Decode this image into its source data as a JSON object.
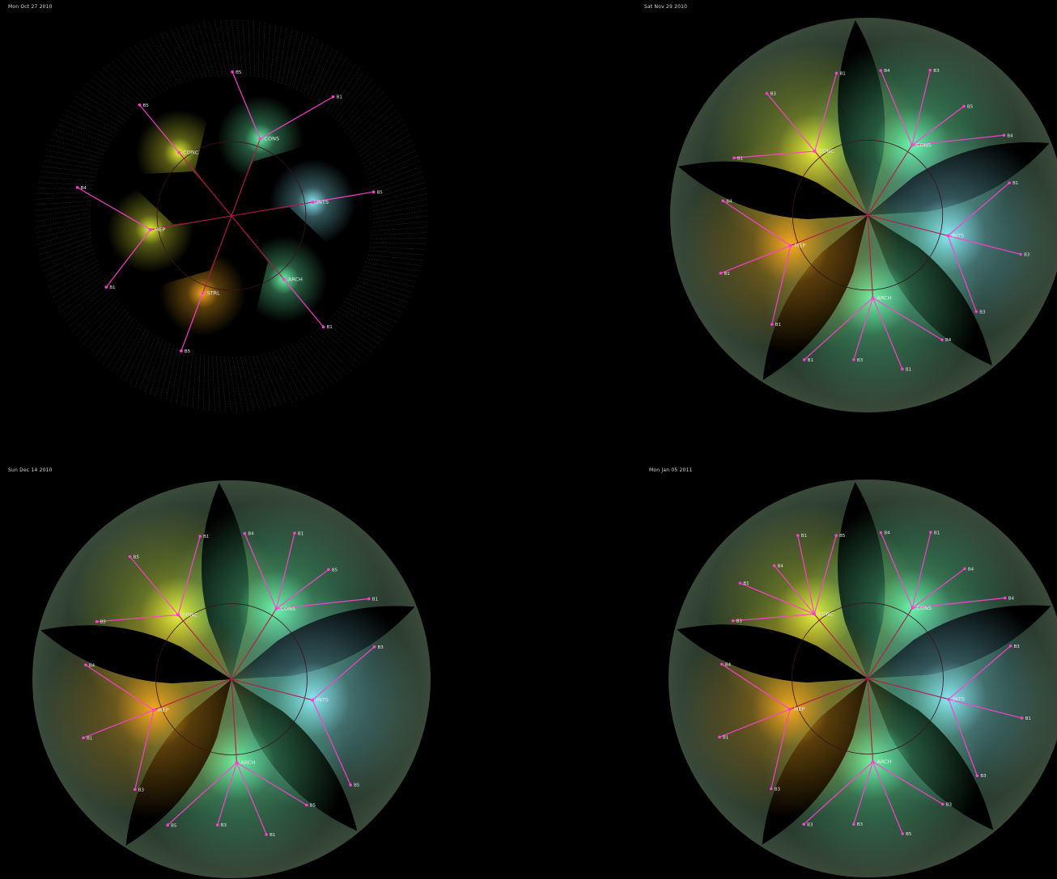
{
  "colors": {
    "background": "#000000",
    "edge": "#ff3fd0",
    "hub_edge": "#b8184a",
    "label": "#e8e8e8",
    "glow_green": "#6dffb0",
    "glow_yellow": "#f4ff3a",
    "glow_orange": "#ffb020",
    "glow_cyan": "#8ff2ff"
  },
  "panels": [
    {
      "date": "Mon Oct 27 2010",
      "style": "wire",
      "groups": [
        {
          "label": "CONC",
          "leaves": [
            "B5"
          ]
        },
        {
          "label": "CONS",
          "leaves": [
            "B5",
            "B1"
          ]
        },
        {
          "label": "INTS",
          "leaves": [
            "B5"
          ]
        },
        {
          "label": "ARCH",
          "leaves": [
            "B1"
          ]
        },
        {
          "label": "STRL",
          "leaves": [
            "B5"
          ]
        },
        {
          "label": "MEP",
          "leaves": [
            "B1",
            "B4"
          ]
        }
      ]
    },
    {
      "date": "Sat Nov 29 2010",
      "style": "shaded",
      "groups": [
        {
          "label": "CONC",
          "leaves": [
            "B1",
            "B3",
            "B1"
          ]
        },
        {
          "label": "CONS",
          "leaves": [
            "B4",
            "B3",
            "B5",
            "B4"
          ]
        },
        {
          "label": "INTS",
          "leaves": [
            "B1",
            "B3",
            "B3"
          ]
        },
        {
          "label": "ARCH",
          "leaves": [
            "B4",
            "B1",
            "B3",
            "B1"
          ]
        },
        {
          "label": "MEP",
          "leaves": [
            "B1",
            "B1",
            "B4"
          ]
        }
      ]
    },
    {
      "date": "Sun Dec 14 2010",
      "style": "shaded",
      "groups": [
        {
          "label": "CONC",
          "leaves": [
            "B5",
            "B5",
            "B1"
          ]
        },
        {
          "label": "CONS",
          "leaves": [
            "B4",
            "B1",
            "B5",
            "B1"
          ]
        },
        {
          "label": "INTS",
          "leaves": [
            "B3",
            "B5"
          ]
        },
        {
          "label": "ARCH",
          "leaves": [
            "B5",
            "B1",
            "B3",
            "B5"
          ]
        },
        {
          "label": "MEP",
          "leaves": [
            "B3",
            "B1",
            "B4"
          ]
        }
      ]
    },
    {
      "date": "Mon Jan 05 2011",
      "style": "shaded",
      "groups": [
        {
          "label": "CONC",
          "leaves": [
            "B3",
            "B1",
            "B4",
            "B1",
            "B5"
          ]
        },
        {
          "label": "CONS",
          "leaves": [
            "B4",
            "B1",
            "B4",
            "B4"
          ]
        },
        {
          "label": "INTS",
          "leaves": [
            "B3",
            "B1",
            "B3"
          ]
        },
        {
          "label": "ARCH",
          "leaves": [
            "B3",
            "B5",
            "B3",
            "B3"
          ]
        },
        {
          "label": "MEP",
          "leaves": [
            "B3",
            "B1",
            "B4"
          ]
        }
      ]
    }
  ]
}
